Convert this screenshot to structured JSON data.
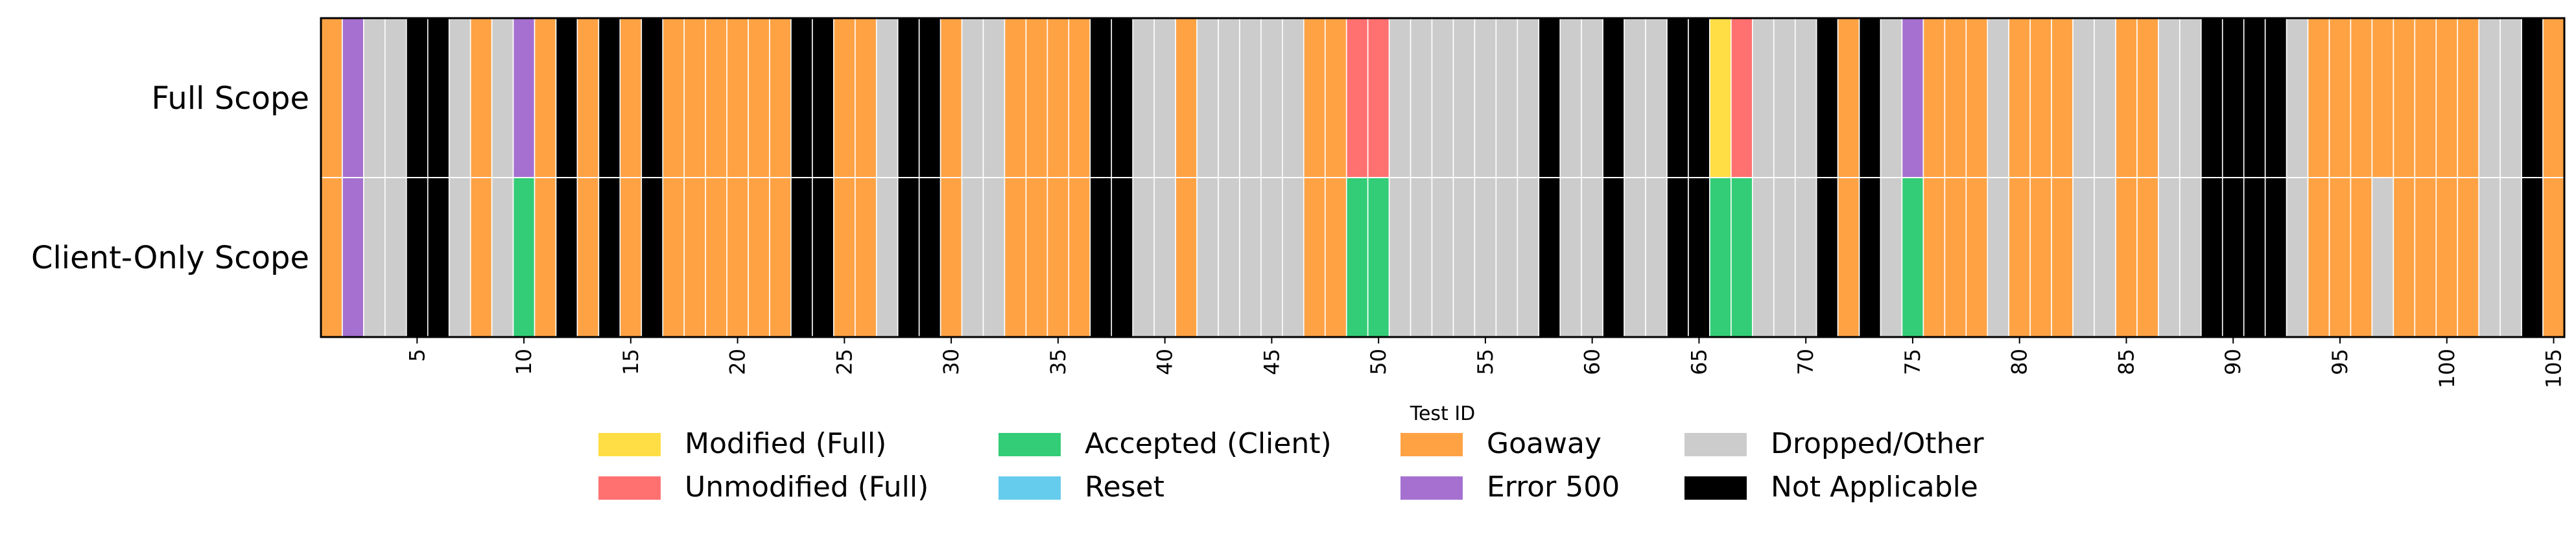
{
  "chart_data": {
    "type": "heatmap",
    "xlabel": "Test ID",
    "rows": [
      "Full Scope",
      "Client-Only Scope"
    ],
    "x_ticks": [
      5,
      10,
      15,
      20,
      25,
      30,
      35,
      40,
      45,
      50,
      55,
      60,
      65,
      70,
      75,
      80,
      85,
      90,
      95,
      100,
      105
    ],
    "x_range": [
      1,
      105
    ],
    "legend_position": "bottom",
    "categories": {
      "M": {
        "label": "Modified (Full)",
        "color": "#FFDD44"
      },
      "U": {
        "label": "Unmodified (Full)",
        "color": "#FF7070"
      },
      "A": {
        "label": "Accepted (Client)",
        "color": "#33CC77"
      },
      "R": {
        "label": "Reset",
        "color": "#66CCEE"
      },
      "G": {
        "label": "Goaway",
        "color": "#FFA244"
      },
      "E": {
        "label": "Error 500",
        "color": "#A570D0"
      },
      "D": {
        "label": "Dropped/Other",
        "color": "#CCCCCC"
      },
      "N": {
        "label": "Not Applicable",
        "color": "#000000"
      }
    },
    "legend_order": [
      "M",
      "U",
      "A",
      "R",
      "G",
      "E",
      "D",
      "N"
    ],
    "legend_columns": 4,
    "values": {
      "Full Scope": [
        "G",
        "E",
        "D",
        "D",
        "N",
        "N",
        "D",
        "G",
        "D",
        "E",
        "G",
        "N",
        "G",
        "N",
        "G",
        "N",
        "G",
        "G",
        "G",
        "G",
        "G",
        "G",
        "N",
        "N",
        "G",
        "G",
        "D",
        "N",
        "N",
        "G",
        "D",
        "D",
        "G",
        "G",
        "G",
        "G",
        "N",
        "N",
        "D",
        "D",
        "G",
        "D",
        "D",
        "D",
        "D",
        "D",
        "G",
        "G",
        "U",
        "U",
        "D",
        "D",
        "D",
        "D",
        "D",
        "D",
        "D",
        "N",
        "D",
        "D",
        "N",
        "D",
        "D",
        "N",
        "N",
        "M",
        "U",
        "D",
        "D",
        "D",
        "N",
        "G",
        "N",
        "D",
        "E",
        "G",
        "G",
        "G",
        "D",
        "G",
        "G",
        "G",
        "D",
        "D",
        "G",
        "G",
        "D",
        "D",
        "N",
        "N",
        "N",
        "N",
        "D",
        "G",
        "G",
        "G",
        "G",
        "G",
        "G",
        "G",
        "G",
        "D",
        "D",
        "N",
        "G"
      ],
      "Client-Only Scope": [
        "G",
        "E",
        "D",
        "D",
        "N",
        "N",
        "D",
        "G",
        "D",
        "A",
        "G",
        "N",
        "G",
        "N",
        "G",
        "N",
        "G",
        "G",
        "G",
        "G",
        "G",
        "G",
        "N",
        "N",
        "G",
        "G",
        "D",
        "N",
        "N",
        "G",
        "D",
        "D",
        "G",
        "G",
        "G",
        "G",
        "N",
        "N",
        "D",
        "D",
        "G",
        "D",
        "D",
        "D",
        "D",
        "D",
        "G",
        "G",
        "A",
        "A",
        "D",
        "D",
        "D",
        "D",
        "D",
        "D",
        "D",
        "N",
        "D",
        "D",
        "N",
        "D",
        "D",
        "N",
        "N",
        "A",
        "A",
        "D",
        "D",
        "D",
        "N",
        "G",
        "N",
        "D",
        "A",
        "G",
        "G",
        "G",
        "D",
        "G",
        "G",
        "G",
        "D",
        "D",
        "G",
        "G",
        "D",
        "D",
        "N",
        "N",
        "N",
        "N",
        "D",
        "G",
        "G",
        "G",
        "D",
        "G",
        "G",
        "G",
        "G",
        "D",
        "D",
        "N",
        "G"
      ]
    }
  }
}
